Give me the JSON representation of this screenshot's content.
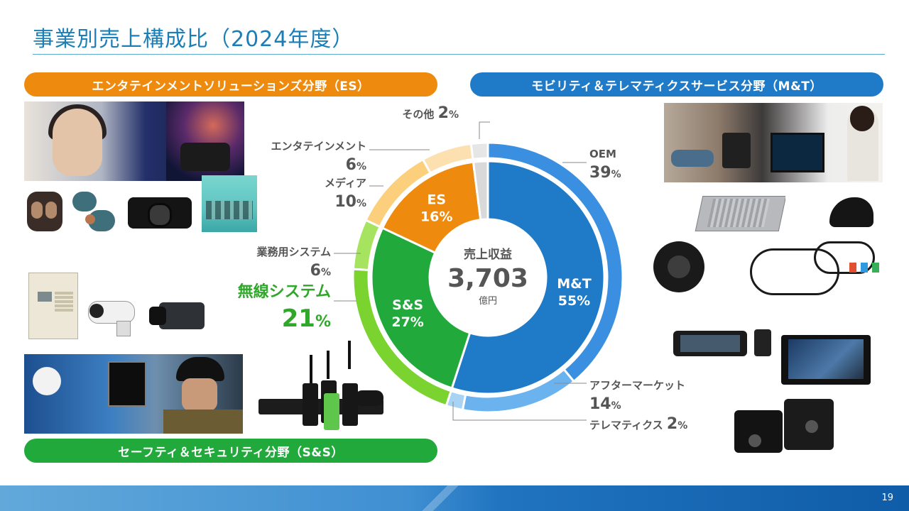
{
  "title": "事業別売上構成比（2024年度）",
  "page_number": "19",
  "segments": {
    "es": "エンタテインメントソリューションズ分野（ES）",
    "mt": "モビリティ＆テレマティクスサービス分野（M&T）",
    "ss": "セーフティ＆セキュリティ分野（S&S）"
  },
  "colors": {
    "mt": "#1f7ac7",
    "ss": "#22a93c",
    "es": "#ee8a0e",
    "other": "#d9d9d9",
    "title": "#1a7fb8"
  },
  "chart_data": {
    "type": "pie",
    "center": {
      "label": "売上収益",
      "value": "3,703",
      "unit": "億円"
    },
    "inner": [
      {
        "name": "M&T",
        "value": 55,
        "label": "55%",
        "color": "#1f7ac7"
      },
      {
        "name": "S&S",
        "value": 27,
        "label": "27%",
        "color": "#22a93c"
      },
      {
        "name": "ES",
        "value": 16,
        "label": "16%",
        "color": "#ee8a0e"
      },
      {
        "name": "",
        "value": 2,
        "label": "",
        "color": "#d9d9d9"
      }
    ],
    "outer": [
      {
        "name": "OEM",
        "value": 39,
        "color": "#3b8fe0",
        "highlight": false
      },
      {
        "name": "アフターマーケット",
        "value": 14,
        "color": "#6ab3ee",
        "highlight": false
      },
      {
        "name": "テレマティクス",
        "value": 2,
        "color": "#a9d3f5",
        "highlight": false
      },
      {
        "name": "無線システム",
        "value": 21,
        "color": "#7ad32e",
        "highlight": true
      },
      {
        "name": "業務用システム",
        "value": 6,
        "color": "#a6e35e",
        "highlight": false
      },
      {
        "name": "メディア",
        "value": 10,
        "color": "#fbcf7c",
        "highlight": false
      },
      {
        "name": "エンタテインメント",
        "value": 6,
        "color": "#fde0b0",
        "highlight": false
      },
      {
        "name": "その他",
        "value": 2,
        "color": "#e6e6e6",
        "highlight": false
      }
    ],
    "pct_sign": "%"
  }
}
